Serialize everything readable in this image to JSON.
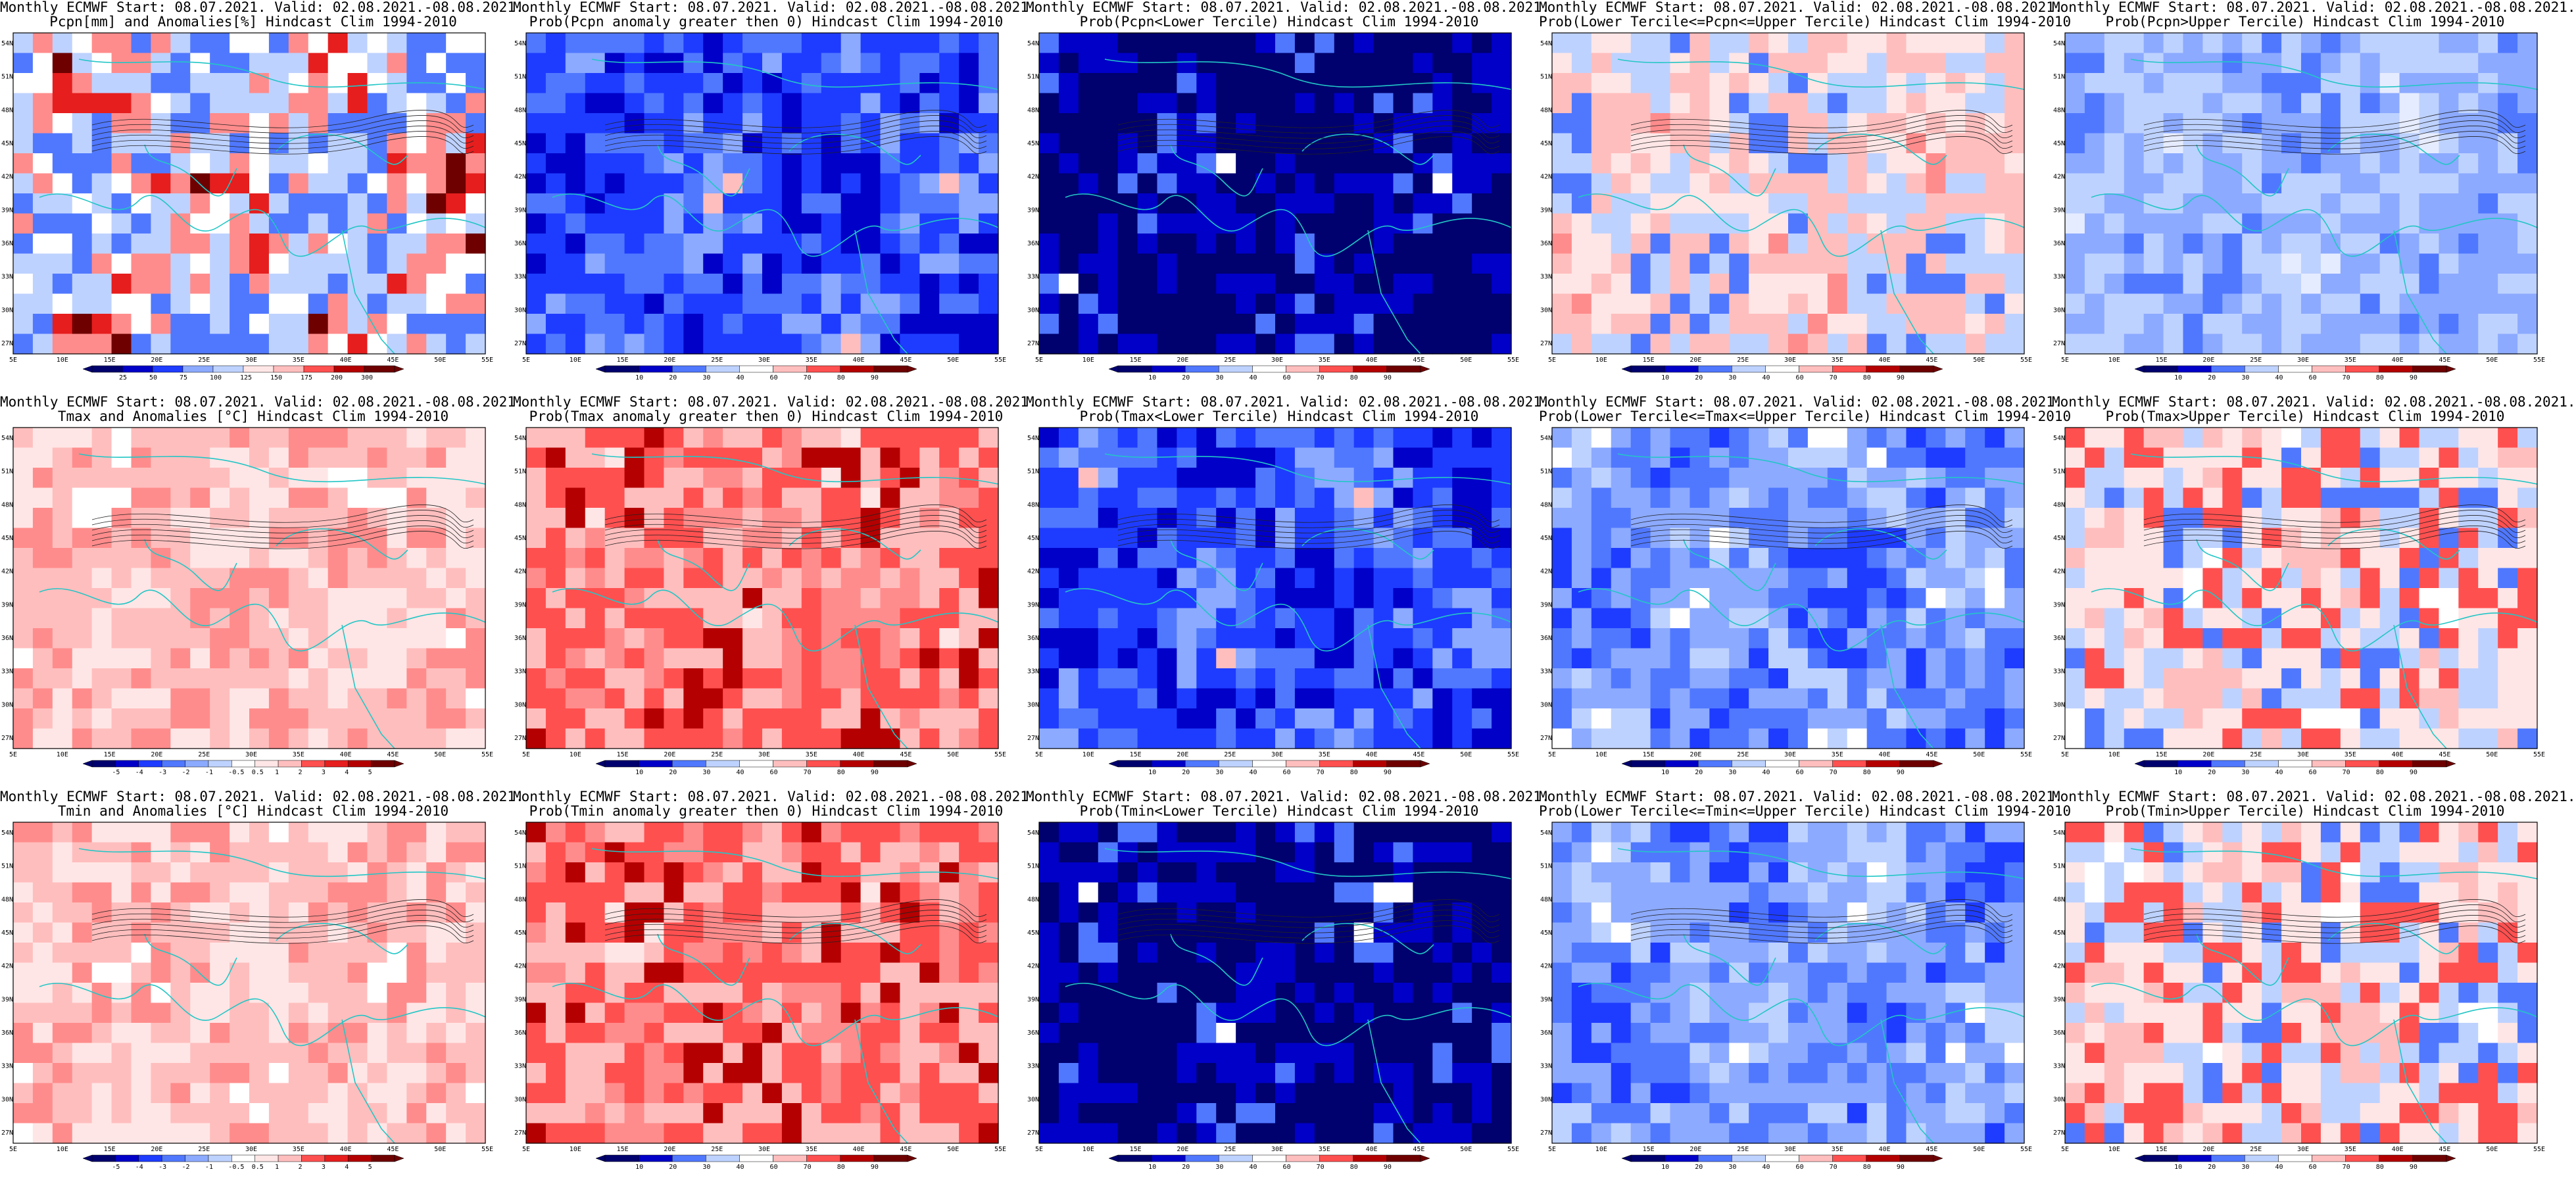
{
  "lat_labels": [
    "54N",
    "51N",
    "48N",
    "45N",
    "42N",
    "39N",
    "36N",
    "33N",
    "30N",
    "27N"
  ],
  "lon_labels": [
    "5E",
    "10E",
    "15E",
    "20E",
    "25E",
    "30E",
    "35E",
    "40E",
    "45E",
    "50E",
    "55E"
  ],
  "colors": {
    "coast": "#22c6c6",
    "contour": "#222222",
    "land_white": "#ffffff",
    "blue_scale": [
      "#00006e",
      "#0000c8",
      "#1e3cff",
      "#5078ff",
      "#8caaff",
      "#bed2ff",
      "#e6ecff"
    ],
    "red_scale": [
      "#ffe6e6",
      "#ffbebe",
      "#ff8c8c",
      "#ff5050",
      "#e61e1e",
      "#b40000",
      "#6e0000"
    ]
  },
  "panels": [
    {
      "title1": "Monthly ECMWF Start: 08.07.2021. Valid: 02.08.2021.-08.08.2021.",
      "title2": "Pcpn[mm] and Anomalies[%] Hindcast Clim 1994-2010",
      "scheme": "pcpn_anom",
      "cb": [
        "25",
        "50",
        "75",
        "100",
        "125",
        "150",
        "175",
        "200",
        "300"
      ]
    },
    {
      "title1": "Monthly ECMWF Start: 08.07.2021. Valid: 02.08.2021.-08.08.2021.",
      "title2": "Prob(Pcpn anomaly greater then 0) Hindcast Clim 1994-2010",
      "scheme": "blue_heavy",
      "cb": [
        "10",
        "20",
        "30",
        "40",
        "60",
        "70",
        "80",
        "90"
      ]
    },
    {
      "title1": "Monthly ECMWF Start: 08.07.2021. Valid: 02.08.2021.-08.08.2021.",
      "title2": "Prob(Pcpn<Lower Tercile) Hindcast Clim 1994-2010",
      "scheme": "blue_dark",
      "cb": [
        "10",
        "20",
        "30",
        "40",
        "60",
        "70",
        "80",
        "90"
      ]
    },
    {
      "title1": "Monthly ECMWF Start: 08.07.2021. Valid: 02.08.2021.-08.08.2021.",
      "title2": "Prob(Lower Tercile<=Pcpn<=Upper Tercile) Hindcast Clim 1994-2010",
      "scheme": "mixed_pink",
      "cb": [
        "10",
        "20",
        "30",
        "40",
        "60",
        "70",
        "80",
        "90"
      ]
    },
    {
      "title1": "Monthly ECMWF Start: 08.07.2021. Valid: 02.08.2021.-08.08.2021.",
      "title2": "Prob(Pcpn>Upper Tercile) Hindcast Clim 1994-2010",
      "scheme": "blue_light",
      "cb": [
        "10",
        "20",
        "30",
        "40",
        "60",
        "70",
        "80",
        "90"
      ]
    },
    {
      "title1": "Monthly ECMWF Start: 08.07.2021. Valid: 02.08.2021.-08.08.2021.",
      "title2": "Tmax and Anomalies [°C] Hindcast Clim 1994-2010",
      "scheme": "red_light",
      "cb": [
        "-5",
        "-4",
        "-3",
        "-2",
        "-1",
        "-0.5",
        "0.5",
        "1",
        "2",
        "3",
        "4",
        "5"
      ]
    },
    {
      "title1": "Monthly ECMWF Start: 08.07.2021. Valid: 02.08.2021.-08.08.2021.",
      "title2": "Prob(Tmax anomaly greater then 0) Hindcast Clim 1994-2010",
      "scheme": "red_heavy",
      "cb": [
        "10",
        "20",
        "30",
        "40",
        "60",
        "70",
        "80",
        "90"
      ]
    },
    {
      "title1": "Monthly ECMWF Start: 08.07.2021. Valid: 02.08.2021.-08.08.2021.",
      "title2": "Prob(Tmax<Lower Tercile) Hindcast Clim 1994-2010",
      "scheme": "blue_heavy",
      "cb": [
        "10",
        "20",
        "30",
        "40",
        "60",
        "70",
        "80",
        "90"
      ]
    },
    {
      "title1": "Monthly ECMWF Start: 08.07.2021. Valid: 02.08.2021.-08.08.2021.",
      "title2": "Prob(Lower Tercile<=Tmax<=Upper Tercile) Hindcast Clim 1994-2010",
      "scheme": "blue_mid",
      "cb": [
        "10",
        "20",
        "30",
        "40",
        "60",
        "70",
        "80",
        "90"
      ]
    },
    {
      "title1": "Monthly ECMWF Start: 08.07.2021. Valid: 02.08.2021.-08.08.2021.",
      "title2": "Prob(Tmax>Upper Tercile) Hindcast Clim 1994-2010",
      "scheme": "red_mixed",
      "cb": [
        "10",
        "20",
        "30",
        "40",
        "60",
        "70",
        "80",
        "90"
      ]
    },
    {
      "title1": "Monthly ECMWF Start: 08.07.2021. Valid: 02.08.2021.-08.08.2021.",
      "title2": "Tmin and Anomalies [°C] Hindcast Clim 1994-2010",
      "scheme": "red_light",
      "cb": [
        "-5",
        "-4",
        "-3",
        "-2",
        "-1",
        "-0.5",
        "0.5",
        "1",
        "2",
        "3",
        "4",
        "5"
      ]
    },
    {
      "title1": "Monthly ECMWF Start: 08.07.2021. Valid: 02.08.2021.-08.08.2021.",
      "title2": "Prob(Tmin anomaly greater then 0) Hindcast Clim 1994-2010",
      "scheme": "red_heavy",
      "cb": [
        "10",
        "20",
        "30",
        "40",
        "60",
        "70",
        "80",
        "90"
      ]
    },
    {
      "title1": "Monthly ECMWF Start: 08.07.2021. Valid: 02.08.2021.-08.08.2021.",
      "title2": "Prob(Tmin<Lower Tercile) Hindcast Clim 1994-2010",
      "scheme": "blue_dark",
      "cb": [
        "10",
        "20",
        "30",
        "40",
        "60",
        "70",
        "80",
        "90"
      ]
    },
    {
      "title1": "Monthly ECMWF Start: 08.07.2021. Valid: 02.08.2021.-08.08.2021.",
      "title2": "Prob(Lower Tercile<=Tmin<=Upper Tercile) Hindcast Clim 1994-2010",
      "scheme": "blue_mid",
      "cb": [
        "10",
        "20",
        "30",
        "40",
        "60",
        "70",
        "80",
        "90"
      ]
    },
    {
      "title1": "Monthly ECMWF Start: 08.07.2021. Valid: 02.08.2021.-08.08.2021.",
      "title2": "Prob(Tmin>Upper Tercile) Hindcast Clim 1994-2010",
      "scheme": "red_mixed",
      "cb": [
        "10",
        "20",
        "30",
        "40",
        "60",
        "70",
        "80",
        "90"
      ]
    }
  ]
}
